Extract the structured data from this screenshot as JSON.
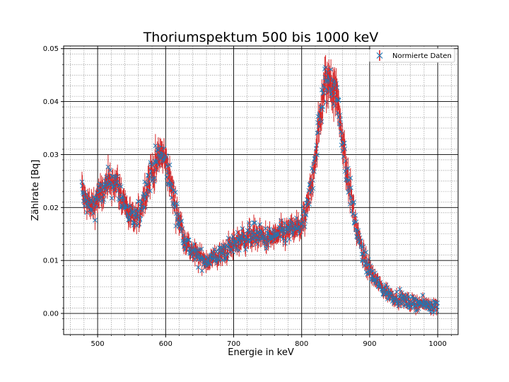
{
  "chart_data": {
    "type": "scatter",
    "title": "Thoriumspektum 500 bis 1000 keV",
    "xlabel": "Energie in keV",
    "ylabel": "Zählrate [Bq]",
    "xlim": [
      450,
      1030
    ],
    "ylim": [
      -0.004,
      0.0505
    ],
    "xticks": [
      500,
      600,
      700,
      800,
      900,
      1000
    ],
    "yticks": [
      0.0,
      0.01,
      0.02,
      0.03,
      0.04,
      0.05
    ],
    "ytick_labels": [
      "0.00",
      "0.01",
      "0.02",
      "0.03",
      "0.04",
      "0.05"
    ],
    "grid": {
      "major": true,
      "minor": true
    },
    "legend": {
      "placement": "top-right",
      "entries": [
        "Normierte Daten"
      ]
    },
    "colors": {
      "marker": "#1f77b4",
      "errorbar": "#d62728"
    },
    "series": [
      {
        "name": "Normierte Daten",
        "marker": "x",
        "error_bars": true,
        "x_range": [
          477,
          1000
        ],
        "x": [
          477,
          480,
          485,
          490,
          495,
          500,
          505,
          510,
          515,
          520,
          525,
          530,
          535,
          540,
          545,
          550,
          555,
          560,
          565,
          570,
          575,
          580,
          585,
          590,
          595,
          600,
          605,
          610,
          615,
          620,
          625,
          630,
          640,
          650,
          660,
          670,
          680,
          690,
          700,
          710,
          720,
          730,
          740,
          750,
          760,
          770,
          780,
          790,
          800,
          805,
          810,
          815,
          820,
          825,
          830,
          835,
          840,
          845,
          850,
          855,
          860,
          865,
          870,
          875,
          880,
          885,
          890,
          895,
          900,
          905,
          910,
          920,
          930,
          940,
          950,
          960,
          970,
          980,
          990,
          1000
        ],
        "y": [
          0.0235,
          0.0215,
          0.021,
          0.02,
          0.0205,
          0.022,
          0.0225,
          0.023,
          0.0245,
          0.025,
          0.025,
          0.024,
          0.022,
          0.021,
          0.019,
          0.018,
          0.0175,
          0.0185,
          0.0205,
          0.023,
          0.025,
          0.027,
          0.028,
          0.0295,
          0.03,
          0.0285,
          0.026,
          0.023,
          0.02,
          0.0175,
          0.0155,
          0.0135,
          0.0115,
          0.0105,
          0.01,
          0.0105,
          0.011,
          0.012,
          0.013,
          0.014,
          0.0145,
          0.015,
          0.0145,
          0.014,
          0.0145,
          0.015,
          0.0155,
          0.016,
          0.0165,
          0.018,
          0.021,
          0.025,
          0.03,
          0.035,
          0.04,
          0.043,
          0.044,
          0.044,
          0.042,
          0.038,
          0.033,
          0.028,
          0.024,
          0.02,
          0.0165,
          0.0135,
          0.011,
          0.0095,
          0.008,
          0.007,
          0.006,
          0.0045,
          0.0035,
          0.003,
          0.0025,
          0.002,
          0.002,
          0.0018,
          0.0015,
          0.0015
        ]
      }
    ]
  }
}
